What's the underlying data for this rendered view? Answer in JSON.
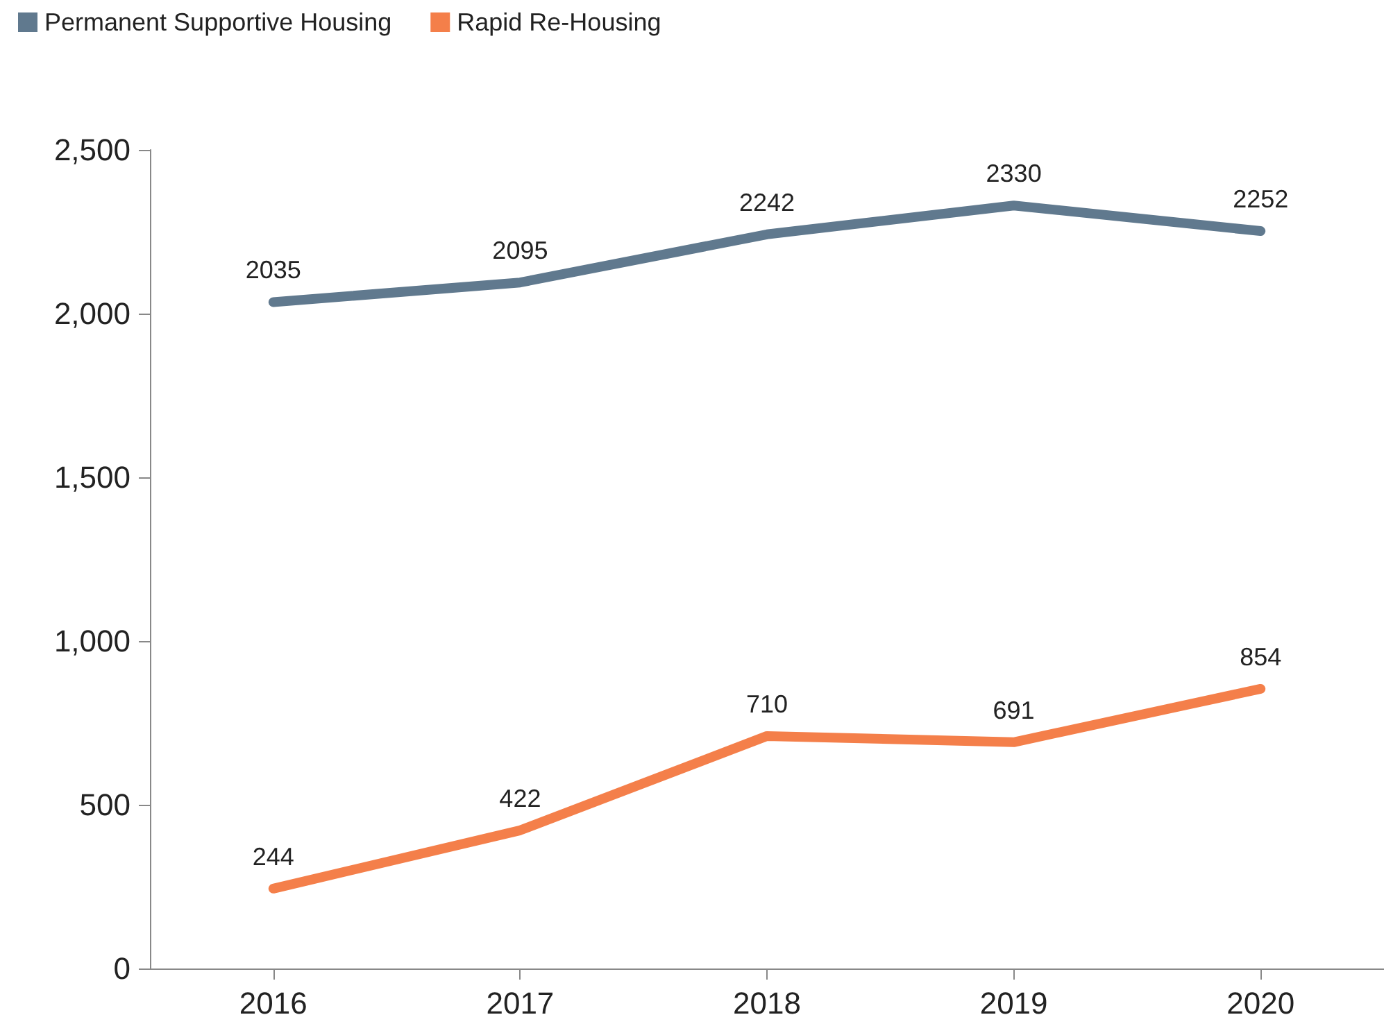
{
  "chart_data": {
    "type": "line",
    "categories": [
      "2016",
      "2017",
      "2018",
      "2019",
      "2020"
    ],
    "series": [
      {
        "name": "Permanent Supportive Housing",
        "color": "#60798e",
        "values": [
          2035,
          2095,
          2242,
          2330,
          2252
        ]
      },
      {
        "name": "Rapid Re-Housing",
        "color": "#f47f4a",
        "values": [
          244,
          422,
          710,
          691,
          854
        ]
      }
    ],
    "ylim": [
      0,
      2500
    ],
    "yticks": [
      {
        "value": 0,
        "label": "0"
      },
      {
        "value": 500,
        "label": "500"
      },
      {
        "value": 1000,
        "label": "1,000"
      },
      {
        "value": 1500,
        "label": "1,500"
      },
      {
        "value": 2000,
        "label": "2,000"
      },
      {
        "value": 2500,
        "label": "2,500"
      }
    ],
    "grid": false,
    "legend": "top left",
    "marker": "none",
    "line_style": "solid",
    "data_labels": true
  }
}
